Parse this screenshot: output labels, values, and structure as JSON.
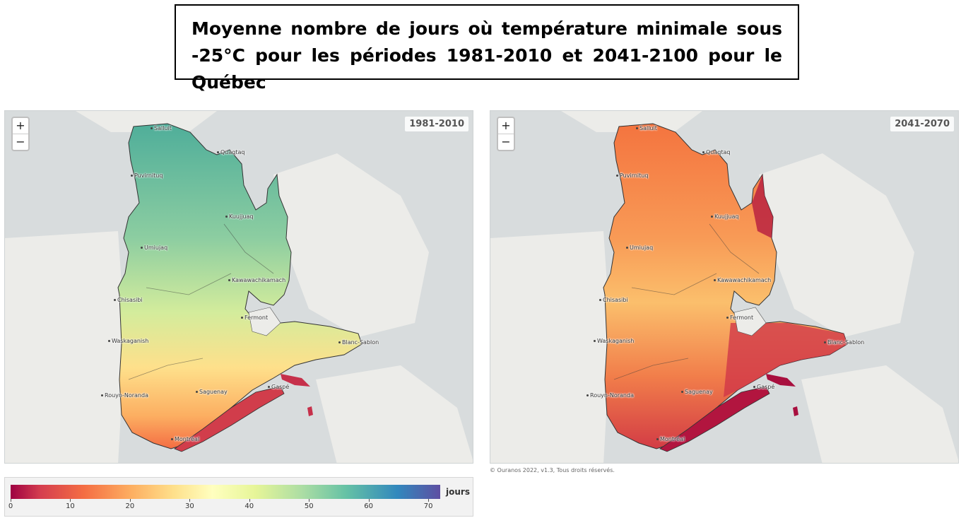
{
  "title": "Moyenne nombre de jours où température minimale sous -25°C pour les périodes 1981-2010 et 2041-2100 pour le Québec",
  "maps": [
    {
      "period": "1981-2010",
      "zoom_in": "+",
      "zoom_out": "−",
      "colors": {
        "north": "#5fb8a0",
        "center": "#b6e09c",
        "south": "#fdd27f",
        "east": "#f7f3a8",
        "coast": "#f58f5c",
        "gaspe": "#d13d4b"
      }
    },
    {
      "period": "2041-2070",
      "zoom_in": "+",
      "zoom_out": "−",
      "colors": {
        "north": "#f47a45",
        "center": "#fbbe6c",
        "south": "#ea5d45",
        "east": "#cc2e45",
        "coast": "#d8394a",
        "gaspe": "#b2153f"
      }
    }
  ],
  "cities": [
    "Salluit",
    "Quaqtaq",
    "Puvirnituq",
    "Kuujjuaq",
    "Umiujaq",
    "Kawawachikamach",
    "Chisasibi",
    "Fermont",
    "Waskaganish",
    "Blanc-Sablon",
    "Rouyn-Noranda",
    "Saguenay",
    "Gaspé",
    "Montréal"
  ],
  "attribution": "© Ouranos 2022, v1.3, Tous droits réservés.",
  "legend": {
    "unit": "jours",
    "ticks": [
      0,
      10,
      20,
      30,
      40,
      50,
      60,
      70
    ],
    "max": 72,
    "colors": [
      "#9e0142",
      "#d53e4f",
      "#f46d43",
      "#fdae61",
      "#fee08b",
      "#ffffbf",
      "#e6f598",
      "#abdda4",
      "#66c2a5",
      "#3288bd",
      "#5e4fa2"
    ]
  }
}
